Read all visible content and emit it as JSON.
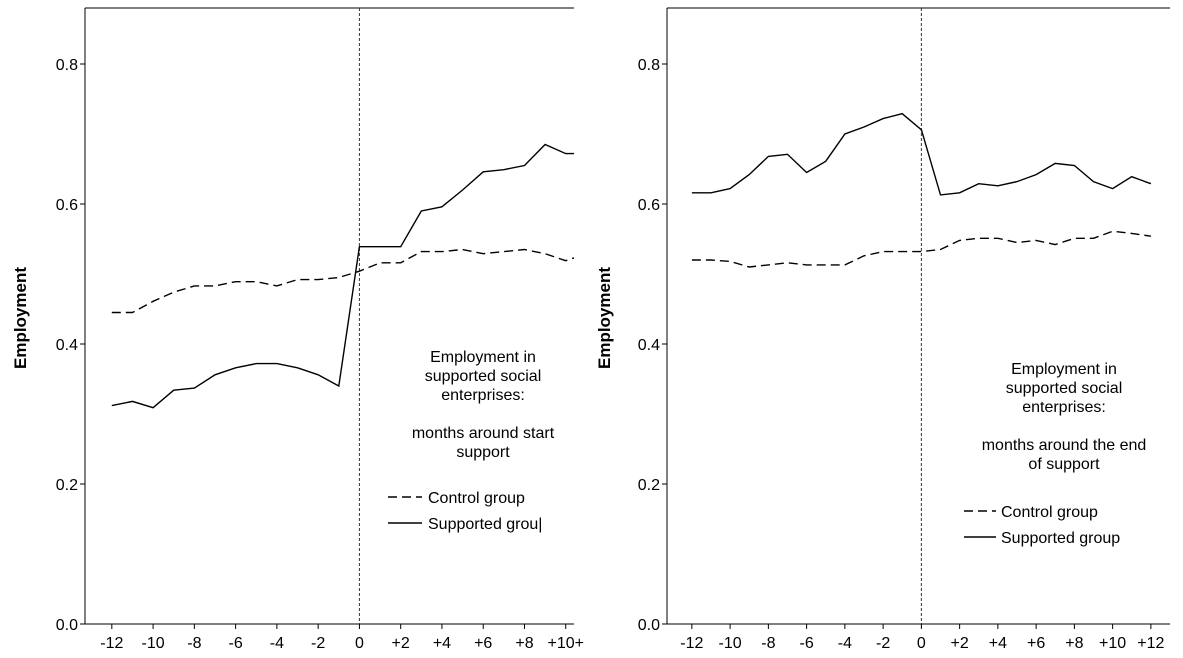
{
  "chart_data": [
    {
      "type": "line",
      "title": "",
      "xlabel": "",
      "ylabel": "Employment",
      "ylim": [
        0,
        0.88
      ],
      "yticks": [
        "0.0",
        "0.2",
        "0.4",
        "0.6",
        "0.8"
      ],
      "ytick_values": [
        0,
        0.2,
        0.4,
        0.6,
        0.8
      ],
      "xticks": [
        "-12",
        "-10",
        "-8",
        "-6",
        "-4",
        "-2",
        "0",
        "+2",
        "+4",
        "+6",
        "+8",
        "+10+"
      ],
      "xtick_values": [
        -12,
        -10,
        -8,
        -6,
        -4,
        -2,
        0,
        2,
        4,
        6,
        8,
        10
      ],
      "xlim": [
        -13.3,
        10.4
      ],
      "reference_line_x": 0,
      "annotation_lines": [
        "Employment in",
        "supported social",
        "enterprises:",
        "",
        "months around start",
        "support"
      ],
      "legend": [
        {
          "label": "Control group",
          "style": "dashed"
        },
        {
          "label": "Supported grou|",
          "style": "solid"
        }
      ],
      "x": [
        -12,
        -11,
        -10,
        -9,
        -8,
        -7,
        -6,
        -5,
        -4,
        -3,
        -2,
        -1,
        0,
        1,
        2,
        3,
        4,
        5,
        6,
        7,
        8,
        9,
        10,
        11
      ],
      "series": [
        {
          "style": "dashed",
          "values": [
            0.445,
            0.445,
            0.461,
            0.474,
            0.483,
            0.483,
            0.489,
            0.489,
            0.483,
            0.492,
            0.492,
            0.495,
            0.504,
            0.516,
            0.516,
            0.532,
            0.532,
            0.535,
            0.529,
            0.532,
            0.535,
            0.529,
            0.519,
            0.529
          ]
        },
        {
          "style": "solid",
          "values": [
            0.312,
            0.318,
            0.309,
            0.334,
            0.337,
            0.356,
            0.366,
            0.372,
            0.372,
            0.366,
            0.356,
            0.34,
            0.539,
            0.539,
            0.539,
            0.59,
            0.596,
            0.62,
            0.646,
            0.649,
            0.655,
            0.685,
            0.672,
            0.672
          ]
        }
      ]
    },
    {
      "type": "line",
      "title": "",
      "xlabel": "",
      "ylabel": "Employment",
      "ylim": [
        0,
        0.88
      ],
      "yticks": [
        "0.0",
        "0.2",
        "0.4",
        "0.6",
        "0.8"
      ],
      "ytick_values": [
        0,
        0.2,
        0.4,
        0.6,
        0.8
      ],
      "xticks": [
        "-12",
        "-10",
        "-8",
        "-6",
        "-4",
        "-2",
        "0",
        "+2",
        "+4",
        "+6",
        "+8",
        "+10",
        "+12"
      ],
      "xtick_values": [
        -12,
        -10,
        -8,
        -6,
        -4,
        -2,
        0,
        2,
        4,
        6,
        8,
        10,
        12
      ],
      "xlim": [
        -13.3,
        13.0
      ],
      "reference_line_x": 0,
      "annotation_lines": [
        "Employment in",
        "supported social",
        "enterprises:",
        "",
        "months around the end",
        "of support"
      ],
      "legend": [
        {
          "label": "Control group",
          "style": "dashed"
        },
        {
          "label": "Supported group",
          "style": "solid"
        }
      ],
      "x": [
        -12,
        -11,
        -10,
        -9,
        -8,
        -7,
        -6,
        -5,
        -4,
        -3,
        -2,
        -1,
        0,
        1,
        2,
        3,
        4,
        5,
        6,
        7,
        8,
        9,
        10,
        11,
        12
      ],
      "series": [
        {
          "style": "dashed",
          "values": [
            0.52,
            0.52,
            0.518,
            0.51,
            0.513,
            0.516,
            0.513,
            0.513,
            0.513,
            0.526,
            0.532,
            0.532,
            0.532,
            0.535,
            0.548,
            0.551,
            0.551,
            0.545,
            0.548,
            0.542,
            0.551,
            0.551,
            0.561,
            0.558,
            0.554
          ]
        },
        {
          "style": "solid",
          "values": [
            0.616,
            0.616,
            0.622,
            0.642,
            0.668,
            0.671,
            0.645,
            0.661,
            0.7,
            0.71,
            0.722,
            0.729,
            0.706,
            0.613,
            0.616,
            0.629,
            0.626,
            0.632,
            0.642,
            0.658,
            0.655,
            0.632,
            0.622,
            0.639,
            0.629
          ]
        }
      ]
    }
  ]
}
